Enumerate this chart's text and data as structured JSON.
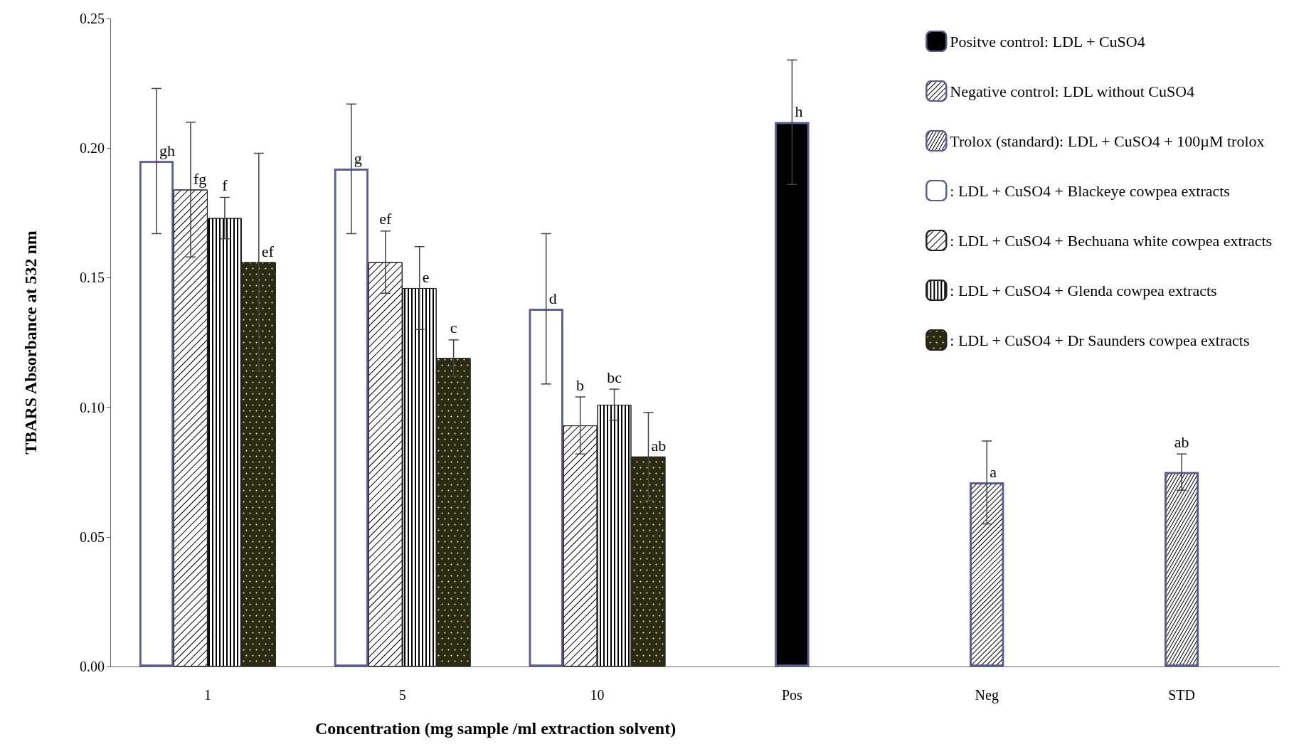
{
  "chart_data": {
    "type": "bar",
    "xlabel": "Concentration (mg sample /ml extraction solvent)",
    "ylabel": "TBARS Absorbance at 532 nm",
    "categories": [
      "1",
      "5",
      "10",
      "Pos",
      "Neg",
      "STD"
    ],
    "ylim": [
      0,
      0.25
    ],
    "yticks": [
      {
        "value": 0,
        "label": "0.00"
      },
      {
        "value": 0.05,
        "label": "0.05"
      },
      {
        "value": 0.1,
        "label": "0.10"
      },
      {
        "value": 0.15,
        "label": "0.15"
      },
      {
        "value": 0.2,
        "label": "0.20"
      },
      {
        "value": 0.25,
        "label": "0.25"
      }
    ],
    "grid": false,
    "legend": "top right",
    "series": [
      {
        "name": "Positve control: LDL + CuSO4",
        "color": "#000000",
        "values": [
          null,
          null,
          null,
          0.21,
          null,
          null
        ],
        "errors": [
          null,
          null,
          null,
          0.024,
          null,
          null
        ],
        "value_labels": [
          null,
          null,
          null,
          "h",
          null,
          null
        ]
      },
      {
        "name": "Negative control: LDL without CuSO4",
        "color": "#ffffff",
        "values": [
          null,
          null,
          null,
          null,
          0.071,
          null
        ],
        "errors": [
          null,
          null,
          null,
          null,
          0.016,
          null
        ],
        "value_labels": [
          null,
          null,
          null,
          null,
          "a",
          null
        ]
      },
      {
        "name": "Trolox (standard): LDL + CuSO4 + 100µM trolox",
        "color": "#ffffff",
        "values": [
          null,
          null,
          null,
          null,
          null,
          0.075
        ],
        "errors": [
          null,
          null,
          null,
          null,
          null,
          0.007
        ],
        "value_labels": [
          null,
          null,
          null,
          null,
          null,
          "ab"
        ]
      },
      {
        "name": ": LDL + CuSO4 + Blackeye cowpea extracts",
        "color": "#ffffff",
        "values": [
          0.195,
          0.192,
          0.138,
          null,
          null,
          null
        ],
        "errors": [
          0.028,
          0.025,
          0.029,
          null,
          null,
          null
        ],
        "value_labels": [
          "gh",
          "g",
          "d",
          null,
          null,
          null
        ]
      },
      {
        "name": ": LDL + CuSO4 + Bechuana white cowpea extracts",
        "color": "#ffffff",
        "values": [
          0.184,
          0.156,
          0.093,
          null,
          null,
          null
        ],
        "errors": [
          0.026,
          0.012,
          0.011,
          null,
          null,
          null
        ],
        "value_labels": [
          "fg",
          "ef",
          "b",
          null,
          null,
          null
        ]
      },
      {
        "name": ": LDL + CuSO4 + Glenda cowpea extracts",
        "color": "#ffffff",
        "values": [
          0.173,
          0.146,
          0.101,
          null,
          null,
          null
        ],
        "errors": [
          0.008,
          0.016,
          0.006,
          null,
          null,
          null
        ],
        "value_labels": [
          "f",
          "e",
          "bc",
          null,
          null,
          null
        ]
      },
      {
        "name": ": LDL + CuSO4 + Dr Saunders cowpea extracts",
        "color": "#2b2b10",
        "values": [
          0.156,
          0.119,
          0.081,
          null,
          null,
          null
        ],
        "errors": [
          0.042,
          0.007,
          0.017,
          null,
          null,
          null
        ],
        "value_labels": [
          "ef",
          "c",
          "ab",
          null,
          null,
          null
        ]
      }
    ]
  }
}
